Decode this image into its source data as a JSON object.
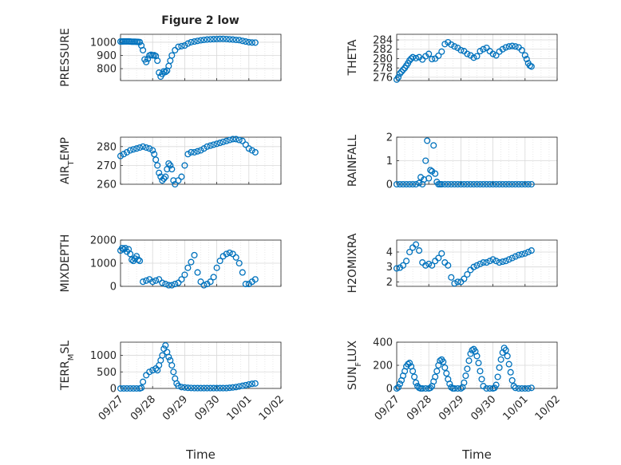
{
  "figure": {
    "title": "Figure 2 low"
  },
  "colors": {
    "marker": "#0072BD",
    "grid": "#d9d9d9",
    "axis": "#262626"
  },
  "chart_data": [
    {
      "type": "scatter",
      "ylabel": "PRESSURE",
      "ylim": [
        710,
        1060
      ],
      "yticks": [
        {
          "v": 800,
          "label": "800"
        },
        {
          "v": 900,
          "label": "900"
        },
        {
          "v": 1000,
          "label": "1000"
        }
      ],
      "xlabel": "",
      "grid": true,
      "series": [
        {
          "t": [
            0,
            0.05,
            0.1,
            0.15,
            0.2,
            0.25,
            0.3,
            0.35,
            0.4,
            0.45,
            0.5,
            0.55,
            0.6,
            0.65,
            0.7,
            0.75,
            0.8,
            0.85,
            0.9,
            0.95,
            1.0,
            1.05,
            1.1,
            1.15,
            1.2,
            1.25,
            1.3,
            1.35,
            1.4,
            1.45,
            1.5,
            1.55,
            1.6,
            1.7,
            1.8,
            1.9,
            2.0,
            2.1,
            2.2,
            2.3,
            2.4,
            2.5,
            2.6,
            2.7,
            2.8,
            2.9,
            3.0,
            3.1,
            3.2,
            3.3,
            3.4,
            3.5,
            3.6,
            3.7,
            3.8,
            3.9,
            4.0,
            4.1,
            4.2
          ],
          "y": [
            1005,
            1005,
            1006,
            1006,
            1006,
            1006,
            1005,
            1004,
            1004,
            1004,
            1003,
            1002,
            1001,
            975,
            940,
            870,
            850,
            875,
            900,
            905,
            900,
            902,
            895,
            860,
            770,
            740,
            760,
            780,
            775,
            785,
            820,
            860,
            900,
            940,
            965,
            970,
            975,
            990,
            1000,
            1005,
            1010,
            1015,
            1018,
            1020,
            1022,
            1023,
            1024,
            1025,
            1025,
            1024,
            1022,
            1020,
            1018,
            1016,
            1010,
            1005,
            1000,
            998,
            997
          ]
        }
      ]
    },
    {
      "type": "scatter",
      "ylabel": "THETA",
      "ylim": [
        275.3,
        285.2
      ],
      "yticks": [
        {
          "v": 276,
          "label": "276"
        },
        {
          "v": 278,
          "label": "278"
        },
        {
          "v": 280,
          "label": "280"
        },
        {
          "v": 282,
          "label": "282"
        },
        {
          "v": 284,
          "label": "284"
        }
      ],
      "xlabel": "",
      "grid": true,
      "series": [
        {
          "t": [
            0,
            0.05,
            0.1,
            0.15,
            0.2,
            0.25,
            0.3,
            0.35,
            0.4,
            0.45,
            0.5,
            0.6,
            0.7,
            0.8,
            0.9,
            1.0,
            1.1,
            1.2,
            1.3,
            1.4,
            1.5,
            1.6,
            1.7,
            1.8,
            1.9,
            2.0,
            2.1,
            2.2,
            2.3,
            2.4,
            2.5,
            2.6,
            2.7,
            2.8,
            2.9,
            3.0,
            3.1,
            3.2,
            3.3,
            3.4,
            3.5,
            3.6,
            3.7,
            3.8,
            3.9,
            4.0,
            4.05,
            4.1,
            4.15,
            4.2
          ],
          "y": [
            275.5,
            276.0,
            276.8,
            277.2,
            277.6,
            278.0,
            278.5,
            279.0,
            279.6,
            280.0,
            280.3,
            280.1,
            280.3,
            279.8,
            280.5,
            281.0,
            279.9,
            280.0,
            280.6,
            281.5,
            283.1,
            283.5,
            283.0,
            282.6,
            282.3,
            281.8,
            281.6,
            281.0,
            280.7,
            280.2,
            280.5,
            281.6,
            282.0,
            282.3,
            281.6,
            281.0,
            280.7,
            281.5,
            282.0,
            282.4,
            282.6,
            282.7,
            282.6,
            282.4,
            281.8,
            280.7,
            279.9,
            279.0,
            278.5,
            278.3
          ]
        }
      ]
    },
    {
      "type": "scatter",
      "ylabel": "AIR_TEMP",
      "ylim": [
        260,
        285
      ],
      "yticks": [
        {
          "v": 260,
          "label": "260"
        },
        {
          "v": 270,
          "label": "270"
        },
        {
          "v": 280,
          "label": "280"
        }
      ],
      "xlabel": "",
      "grid": true,
      "series": [
        {
          "t": [
            0,
            0.1,
            0.2,
            0.3,
            0.4,
            0.5,
            0.6,
            0.7,
            0.8,
            0.9,
            1.0,
            1.05,
            1.1,
            1.15,
            1.2,
            1.25,
            1.3,
            1.35,
            1.4,
            1.45,
            1.5,
            1.55,
            1.6,
            1.65,
            1.7,
            1.8,
            1.9,
            2.0,
            2.1,
            2.2,
            2.3,
            2.4,
            2.5,
            2.6,
            2.7,
            2.8,
            2.9,
            3.0,
            3.1,
            3.2,
            3.3,
            3.4,
            3.5,
            3.6,
            3.7,
            3.8,
            3.9,
            4.0,
            4.1,
            4.2
          ],
          "y": [
            275,
            276,
            277,
            278,
            278.5,
            279,
            279.5,
            280,
            279.5,
            279,
            278,
            276,
            273,
            270,
            266,
            264,
            262,
            263,
            264,
            268,
            271,
            270,
            268,
            262,
            260,
            262,
            264,
            270,
            276,
            277,
            277,
            277.5,
            278,
            279,
            280,
            280.5,
            281,
            281.5,
            282,
            282.5,
            283,
            283.5,
            284,
            284,
            283.5,
            283,
            281,
            279,
            278,
            277
          ]
        }
      ]
    },
    {
      "type": "scatter",
      "ylabel": "RAINFALL",
      "ylim": [
        0,
        2
      ],
      "yticks": [
        {
          "v": 0,
          "label": "0"
        },
        {
          "v": 1,
          "label": "1"
        },
        {
          "v": 2,
          "label": "2"
        }
      ],
      "xlabel": "",
      "grid": true,
      "series": [
        {
          "t": [
            0,
            0.1,
            0.2,
            0.3,
            0.4,
            0.5,
            0.6,
            0.7,
            0.75,
            0.8,
            0.85,
            0.9,
            0.95,
            1.0,
            1.05,
            1.1,
            1.15,
            1.2,
            1.25,
            1.3,
            1.35,
            1.4,
            1.5,
            1.6,
            1.7,
            1.8,
            1.9,
            2.0,
            2.1,
            2.2,
            2.3,
            2.4,
            2.5,
            2.6,
            2.7,
            2.8,
            2.9,
            3.0,
            3.1,
            3.2,
            3.3,
            3.4,
            3.5,
            3.6,
            3.7,
            3.8,
            3.9,
            4.0,
            4.1,
            4.2
          ],
          "y": [
            0,
            0,
            0,
            0,
            0,
            0,
            0,
            0.05,
            0.3,
            0,
            0.2,
            1.0,
            1.85,
            0.25,
            0.6,
            0.55,
            1.65,
            0.45,
            0.1,
            0,
            0,
            0,
            0,
            0,
            0,
            0,
            0,
            0,
            0,
            0,
            0,
            0,
            0,
            0,
            0,
            0,
            0,
            0,
            0,
            0,
            0,
            0,
            0,
            0,
            0,
            0,
            0,
            0,
            0,
            0
          ]
        }
      ]
    },
    {
      "type": "scatter",
      "ylabel": "MIXDEPTH",
      "ylim": [
        0,
        2000
      ],
      "yticks": [
        {
          "v": 0,
          "label": "0"
        },
        {
          "v": 1000,
          "label": "1000"
        },
        {
          "v": 2000,
          "label": "2000"
        }
      ],
      "xlabel": "",
      "grid": true,
      "series": [
        {
          "t": [
            0,
            0.05,
            0.1,
            0.15,
            0.2,
            0.25,
            0.3,
            0.35,
            0.4,
            0.45,
            0.5,
            0.55,
            0.6,
            0.7,
            0.8,
            0.9,
            1.0,
            1.1,
            1.2,
            1.3,
            1.4,
            1.5,
            1.6,
            1.7,
            1.8,
            1.9,
            2.0,
            2.1,
            2.2,
            2.3,
            2.4,
            2.5,
            2.6,
            2.7,
            2.8,
            2.9,
            3.0,
            3.1,
            3.2,
            3.3,
            3.4,
            3.5,
            3.6,
            3.7,
            3.8,
            3.9,
            4.0,
            4.1,
            4.2
          ],
          "y": [
            1550,
            1650,
            1600,
            1650,
            1500,
            1600,
            1400,
            1150,
            1100,
            1200,
            1300,
            1150,
            1100,
            200,
            250,
            300,
            200,
            250,
            300,
            150,
            100,
            50,
            50,
            100,
            150,
            300,
            500,
            800,
            1050,
            1350,
            600,
            200,
            50,
            100,
            200,
            400,
            800,
            1100,
            1300,
            1400,
            1450,
            1400,
            1250,
            1000,
            600,
            100,
            100,
            200,
            300
          ]
        }
      ]
    },
    {
      "type": "scatter",
      "ylabel": "H2OMIXRA",
      "ylim": [
        1.7,
        4.8
      ],
      "yticks": [
        {
          "v": 2,
          "label": "2"
        },
        {
          "v": 3,
          "label": "3"
        },
        {
          "v": 4,
          "label": "4"
        }
      ],
      "xlabel": "",
      "grid": true,
      "series": [
        {
          "t": [
            0,
            0.1,
            0.2,
            0.3,
            0.4,
            0.5,
            0.6,
            0.7,
            0.8,
            0.9,
            1.0,
            1.1,
            1.2,
            1.3,
            1.4,
            1.5,
            1.6,
            1.7,
            1.8,
            1.9,
            2.0,
            2.1,
            2.2,
            2.3,
            2.4,
            2.5,
            2.6,
            2.7,
            2.8,
            2.9,
            3.0,
            3.1,
            3.2,
            3.3,
            3.4,
            3.5,
            3.6,
            3.7,
            3.8,
            3.9,
            4.0,
            4.1,
            4.2
          ],
          "y": [
            2.9,
            2.95,
            3.1,
            3.4,
            4.0,
            4.3,
            4.5,
            4.1,
            3.3,
            3.1,
            3.2,
            3.1,
            3.4,
            3.6,
            3.9,
            3.3,
            3.1,
            2.3,
            1.9,
            2.0,
            2.0,
            2.2,
            2.5,
            2.8,
            3.0,
            3.1,
            3.2,
            3.3,
            3.3,
            3.4,
            3.5,
            3.4,
            3.3,
            3.35,
            3.4,
            3.5,
            3.6,
            3.7,
            3.8,
            3.85,
            3.9,
            4.0,
            4.1
          ]
        }
      ]
    },
    {
      "type": "scatter",
      "ylabel": "TERR_MSL",
      "ylim": [
        0,
        1400
      ],
      "yticks": [
        {
          "v": 0,
          "label": "0"
        },
        {
          "v": 500,
          "label": "500"
        },
        {
          "v": 1000,
          "label": "1000"
        }
      ],
      "xlabel": "Time",
      "grid": true,
      "xticks": [
        "09/27",
        "09/28",
        "09/29",
        "09/30",
        "10/01",
        "10/02"
      ],
      "series": [
        {
          "t": [
            0,
            0.1,
            0.2,
            0.3,
            0.4,
            0.5,
            0.6,
            0.65,
            0.7,
            0.8,
            0.9,
            1.0,
            1.1,
            1.15,
            1.2,
            1.25,
            1.3,
            1.35,
            1.4,
            1.45,
            1.5,
            1.55,
            1.6,
            1.65,
            1.7,
            1.75,
            1.8,
            1.9,
            2.0,
            2.1,
            2.2,
            2.3,
            2.4,
            2.5,
            2.6,
            2.7,
            2.8,
            2.9,
            3.0,
            3.1,
            3.2,
            3.3,
            3.4,
            3.5,
            3.6,
            3.7,
            3.8,
            3.9,
            4.0,
            4.1,
            4.2
          ],
          "y": [
            0,
            0,
            0,
            0,
            0,
            0,
            0,
            20,
            200,
            400,
            500,
            550,
            600,
            550,
            700,
            850,
            1000,
            1200,
            1300,
            1100,
            950,
            850,
            700,
            500,
            300,
            150,
            80,
            40,
            30,
            20,
            15,
            10,
            10,
            10,
            10,
            10,
            10,
            10,
            10,
            10,
            10,
            10,
            20,
            30,
            40,
            60,
            80,
            100,
            120,
            140,
            150
          ]
        }
      ]
    },
    {
      "type": "scatter",
      "ylabel": "SUN_FLUX",
      "ylim": [
        0,
        400
      ],
      "yticks": [
        {
          "v": 0,
          "label": "0"
        },
        {
          "v": 200,
          "label": "200"
        },
        {
          "v": 400,
          "label": "400"
        }
      ],
      "xlabel": "Time",
      "grid": true,
      "xticks": [
        "09/27",
        "09/28",
        "09/29",
        "09/30",
        "10/01",
        "10/02"
      ],
      "series": [
        {
          "t": [
            0,
            0.05,
            0.1,
            0.15,
            0.2,
            0.25,
            0.3,
            0.35,
            0.4,
            0.45,
            0.5,
            0.55,
            0.6,
            0.65,
            0.7,
            0.75,
            0.8,
            0.9,
            1.0,
            1.05,
            1.1,
            1.15,
            1.2,
            1.25,
            1.3,
            1.35,
            1.4,
            1.45,
            1.5,
            1.55,
            1.6,
            1.65,
            1.7,
            1.75,
            1.8,
            1.9,
            2.0,
            2.05,
            2.1,
            2.15,
            2.2,
            2.25,
            2.3,
            2.35,
            2.4,
            2.45,
            2.5,
            2.55,
            2.6,
            2.65,
            2.7,
            2.8,
            2.9,
            3.0,
            3.05,
            3.1,
            3.15,
            3.2,
            3.25,
            3.3,
            3.35,
            3.4,
            3.45,
            3.5,
            3.55,
            3.6,
            3.65,
            3.7,
            3.8,
            3.9,
            4.0,
            4.1,
            4.2
          ],
          "y": [
            0,
            10,
            40,
            70,
            110,
            150,
            190,
            210,
            220,
            190,
            150,
            100,
            50,
            20,
            5,
            0,
            0,
            0,
            0,
            5,
            20,
            60,
            100,
            150,
            200,
            240,
            250,
            230,
            180,
            130,
            80,
            40,
            10,
            0,
            0,
            0,
            0,
            10,
            50,
            110,
            170,
            240,
            300,
            330,
            340,
            320,
            280,
            220,
            150,
            80,
            20,
            0,
            0,
            0,
            5,
            30,
            100,
            180,
            250,
            310,
            350,
            330,
            280,
            210,
            140,
            70,
            20,
            5,
            0,
            0,
            0,
            0,
            5
          ]
        }
      ]
    }
  ]
}
